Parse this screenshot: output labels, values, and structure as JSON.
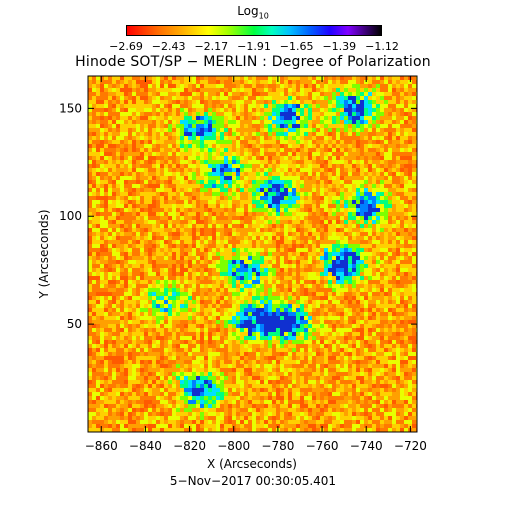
{
  "colorbar": {
    "label_main": "Log",
    "label_sub": "10",
    "ticks": [
      "−2.69",
      "−2.43",
      "−2.17",
      "−1.91",
      "−1.65",
      "−1.39",
      "−1.12"
    ],
    "colors": [
      "#ff0000",
      "#ff6a00",
      "#ffb000",
      "#ffff00",
      "#a0ff00",
      "#00ff40",
      "#00ffc0",
      "#00c0ff",
      "#0060ff",
      "#2000ff",
      "#8000ff",
      "#000000"
    ]
  },
  "chart_data": {
    "type": "heatmap",
    "title": "Hinode SOT/SP − MERLIN : Degree of Polarization",
    "xlabel": "X (Arcseconds)",
    "ylabel": "Y (Arcseconds)",
    "xlim": [
      -866,
      -717
    ],
    "ylim": [
      0,
      165
    ],
    "x_ticks": [
      -860,
      -840,
      -820,
      -800,
      -780,
      -760,
      -740,
      -720
    ],
    "y_ticks": [
      50,
      100,
      150
    ],
    "x_tick_labels": [
      "−860",
      "−840",
      "−820",
      "−800",
      "−780",
      "−760",
      "−740",
      "−720"
    ],
    "y_tick_labels": [
      "50",
      "100",
      "150"
    ],
    "value_range_log10": [
      -2.69,
      -1.12
    ],
    "features": [
      {
        "x": -805,
        "y": 120,
        "strength": 0.75
      },
      {
        "x": -780,
        "y": 110,
        "strength": 0.9
      },
      {
        "x": -795,
        "y": 75,
        "strength": 0.8
      },
      {
        "x": -790,
        "y": 52,
        "strength": 1.0
      },
      {
        "x": -775,
        "y": 50,
        "strength": 0.85
      },
      {
        "x": -750,
        "y": 78,
        "strength": 1.0
      },
      {
        "x": -740,
        "y": 105,
        "strength": 0.8
      },
      {
        "x": -745,
        "y": 150,
        "strength": 0.9
      },
      {
        "x": -775,
        "y": 145,
        "strength": 0.85
      },
      {
        "x": -815,
        "y": 140,
        "strength": 0.8
      },
      {
        "x": -830,
        "y": 60,
        "strength": 0.5
      },
      {
        "x": -815,
        "y": 20,
        "strength": 0.85
      }
    ],
    "grid": false,
    "legend": "colorbar-top"
  },
  "timestamp": "5−Nov−2017 00:30:05.401"
}
